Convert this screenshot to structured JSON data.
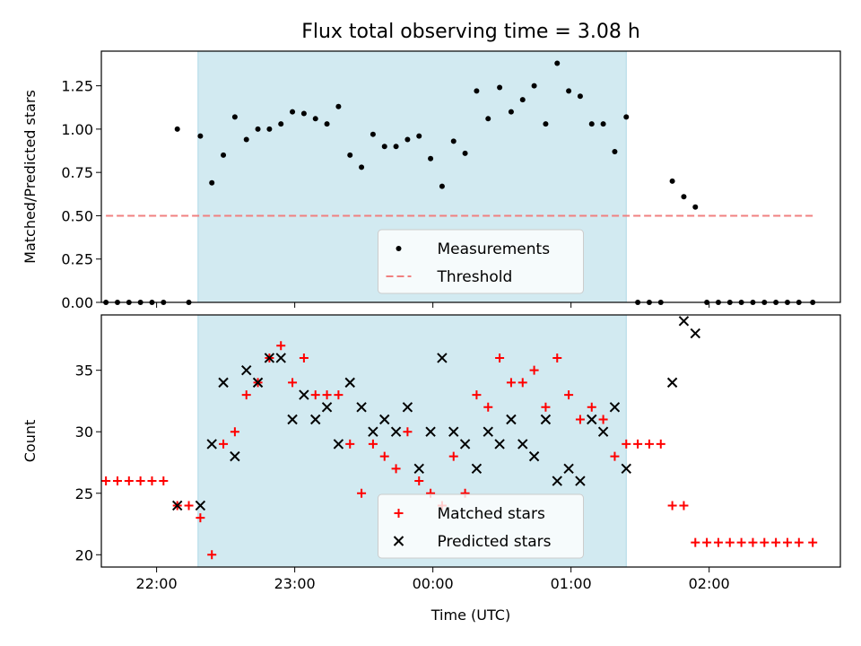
{
  "title": "Flux total observing time = 3.08 h",
  "colors": {
    "shade": "#add8e6",
    "threshold": "#f08080",
    "measurement": "#000000",
    "matched": "#ff0000",
    "predicted": "#000000"
  },
  "chart_data": [
    {
      "type": "scatter",
      "panel": "top",
      "ylabel": "Matched/Predicted stars",
      "xlim": [
        21.6,
        2.95
      ],
      "ylim": [
        0,
        1.45
      ],
      "x_ticks": [
        "22:00",
        "23:00",
        "00:00",
        "01:00",
        "02:00"
      ],
      "y_ticks": [
        "0.00",
        "0.25",
        "0.50",
        "0.75",
        "1.00",
        "1.25"
      ],
      "shaded_span": [
        "22:18",
        "01:24"
      ],
      "threshold": 0.5,
      "threshold_x_range": [
        "21:38",
        "02:45"
      ],
      "legend": {
        "position": "lower-center",
        "entries": [
          "Measurements",
          "Threshold"
        ]
      },
      "series": [
        {
          "name": "Measurements",
          "marker": "dot",
          "points": [
            [
              "21:38",
              0.0
            ],
            [
              "21:43",
              0.0
            ],
            [
              "21:48",
              0.0
            ],
            [
              "21:53",
              0.0
            ],
            [
              "21:58",
              0.0
            ],
            [
              "22:03",
              0.0
            ],
            [
              "22:09",
              1.0
            ],
            [
              "22:14",
              0.0
            ],
            [
              "22:19",
              0.96
            ],
            [
              "22:24",
              0.69
            ],
            [
              "22:29",
              0.85
            ],
            [
              "22:34",
              1.07
            ],
            [
              "22:39",
              0.94
            ],
            [
              "22:44",
              1.0
            ],
            [
              "22:49",
              1.0
            ],
            [
              "22:54",
              1.03
            ],
            [
              "22:59",
              1.1
            ],
            [
              "23:04",
              1.09
            ],
            [
              "23:09",
              1.06
            ],
            [
              "23:14",
              1.03
            ],
            [
              "23:19",
              1.13
            ],
            [
              "23:24",
              0.85
            ],
            [
              "23:29",
              0.78
            ],
            [
              "23:34",
              0.97
            ],
            [
              "23:39",
              0.9
            ],
            [
              "23:44",
              0.9
            ],
            [
              "23:49",
              0.94
            ],
            [
              "23:54",
              0.96
            ],
            [
              "23:59",
              0.83
            ],
            [
              "00:04",
              0.67
            ],
            [
              "00:09",
              0.93
            ],
            [
              "00:14",
              0.86
            ],
            [
              "00:19",
              1.22
            ],
            [
              "00:24",
              1.06
            ],
            [
              "00:29",
              1.24
            ],
            [
              "00:34",
              1.1
            ],
            [
              "00:39",
              1.17
            ],
            [
              "00:44",
              1.25
            ],
            [
              "00:49",
              1.03
            ],
            [
              "00:54",
              1.38
            ],
            [
              "00:59",
              1.22
            ],
            [
              "01:04",
              1.19
            ],
            [
              "01:09",
              1.03
            ],
            [
              "01:14",
              1.03
            ],
            [
              "01:19",
              0.87
            ],
            [
              "01:24",
              1.07
            ],
            [
              "01:29",
              0.0
            ],
            [
              "01:34",
              0.0
            ],
            [
              "01:39",
              0.0
            ],
            [
              "01:44",
              0.7
            ],
            [
              "01:49",
              0.61
            ],
            [
              "01:54",
              0.55
            ],
            [
              "01:59",
              0.0
            ],
            [
              "02:04",
              0.0
            ],
            [
              "02:09",
              0.0
            ],
            [
              "02:14",
              0.0
            ],
            [
              "02:19",
              0.0
            ],
            [
              "02:24",
              0.0
            ],
            [
              "02:29",
              0.0
            ],
            [
              "02:34",
              0.0
            ],
            [
              "02:39",
              0.0
            ],
            [
              "02:45",
              0.0
            ]
          ]
        }
      ]
    },
    {
      "type": "scatter",
      "panel": "bottom",
      "xlabel": "Time (UTC)",
      "ylabel": "Count",
      "xlim": [
        21.6,
        2.95
      ],
      "ylim": [
        19,
        39.5
      ],
      "x_ticks": [
        "22:00",
        "23:00",
        "00:00",
        "01:00",
        "02:00"
      ],
      "y_ticks": [
        "20",
        "25",
        "30",
        "35"
      ],
      "shaded_span": [
        "22:18",
        "01:24"
      ],
      "legend": {
        "position": "lower-center",
        "entries": [
          "Matched stars",
          "Predicted stars"
        ]
      },
      "series": [
        {
          "name": "Matched stars",
          "marker": "plus",
          "points": [
            [
              "21:38",
              26
            ],
            [
              "21:43",
              26
            ],
            [
              "21:48",
              26
            ],
            [
              "21:53",
              26
            ],
            [
              "21:58",
              26
            ],
            [
              "22:03",
              26
            ],
            [
              "22:09",
              24
            ],
            [
              "22:14",
              24
            ],
            [
              "22:19",
              23
            ],
            [
              "22:24",
              20
            ],
            [
              "22:29",
              29
            ],
            [
              "22:34",
              30
            ],
            [
              "22:39",
              33
            ],
            [
              "22:44",
              34
            ],
            [
              "22:49",
              36
            ],
            [
              "22:54",
              37
            ],
            [
              "22:59",
              34
            ],
            [
              "23:04",
              36
            ],
            [
              "23:09",
              33
            ],
            [
              "23:14",
              33
            ],
            [
              "23:19",
              33
            ],
            [
              "23:24",
              29
            ],
            [
              "23:29",
              25
            ],
            [
              "23:34",
              29
            ],
            [
              "23:39",
              28
            ],
            [
              "23:44",
              27
            ],
            [
              "23:49",
              30
            ],
            [
              "23:54",
              26
            ],
            [
              "23:59",
              25
            ],
            [
              "00:04",
              24
            ],
            [
              "00:09",
              28
            ],
            [
              "00:14",
              25
            ],
            [
              "00:19",
              33
            ],
            [
              "00:24",
              32
            ],
            [
              "00:29",
              36
            ],
            [
              "00:34",
              34
            ],
            [
              "00:39",
              34
            ],
            [
              "00:44",
              35
            ],
            [
              "00:49",
              32
            ],
            [
              "00:54",
              36
            ],
            [
              "00:59",
              33
            ],
            [
              "01:04",
              31
            ],
            [
              "01:09",
              32
            ],
            [
              "01:14",
              31
            ],
            [
              "01:19",
              28
            ],
            [
              "01:24",
              29
            ],
            [
              "01:29",
              29
            ],
            [
              "01:34",
              29
            ],
            [
              "01:39",
              29
            ],
            [
              "01:44",
              24
            ],
            [
              "01:49",
              24
            ],
            [
              "01:54",
              21
            ],
            [
              "01:59",
              21
            ],
            [
              "02:04",
              21
            ],
            [
              "02:09",
              21
            ],
            [
              "02:14",
              21
            ],
            [
              "02:19",
              21
            ],
            [
              "02:24",
              21
            ],
            [
              "02:29",
              21
            ],
            [
              "02:34",
              21
            ],
            [
              "02:39",
              21
            ],
            [
              "02:45",
              21
            ]
          ]
        },
        {
          "name": "Predicted stars",
          "marker": "x",
          "points": [
            [
              "22:09",
              24
            ],
            [
              "22:19",
              24
            ],
            [
              "22:24",
              29
            ],
            [
              "22:29",
              34
            ],
            [
              "22:34",
              28
            ],
            [
              "22:39",
              35
            ],
            [
              "22:44",
              34
            ],
            [
              "22:49",
              36
            ],
            [
              "22:54",
              36
            ],
            [
              "22:59",
              31
            ],
            [
              "23:04",
              33
            ],
            [
              "23:09",
              31
            ],
            [
              "23:14",
              32
            ],
            [
              "23:19",
              29
            ],
            [
              "23:24",
              34
            ],
            [
              "23:29",
              32
            ],
            [
              "23:34",
              30
            ],
            [
              "23:39",
              31
            ],
            [
              "23:44",
              30
            ],
            [
              "23:49",
              32
            ],
            [
              "23:54",
              27
            ],
            [
              "23:59",
              30
            ],
            [
              "00:04",
              36
            ],
            [
              "00:09",
              30
            ],
            [
              "00:14",
              29
            ],
            [
              "00:19",
              27
            ],
            [
              "00:24",
              30
            ],
            [
              "00:29",
              29
            ],
            [
              "00:34",
              31
            ],
            [
              "00:39",
              29
            ],
            [
              "00:44",
              28
            ],
            [
              "00:49",
              31
            ],
            [
              "00:54",
              26
            ],
            [
              "00:59",
              27
            ],
            [
              "01:04",
              26
            ],
            [
              "01:09",
              31
            ],
            [
              "01:14",
              30
            ],
            [
              "01:19",
              32
            ],
            [
              "01:24",
              27
            ],
            [
              "01:44",
              34
            ],
            [
              "01:49",
              39
            ],
            [
              "01:54",
              38
            ]
          ]
        }
      ]
    }
  ]
}
